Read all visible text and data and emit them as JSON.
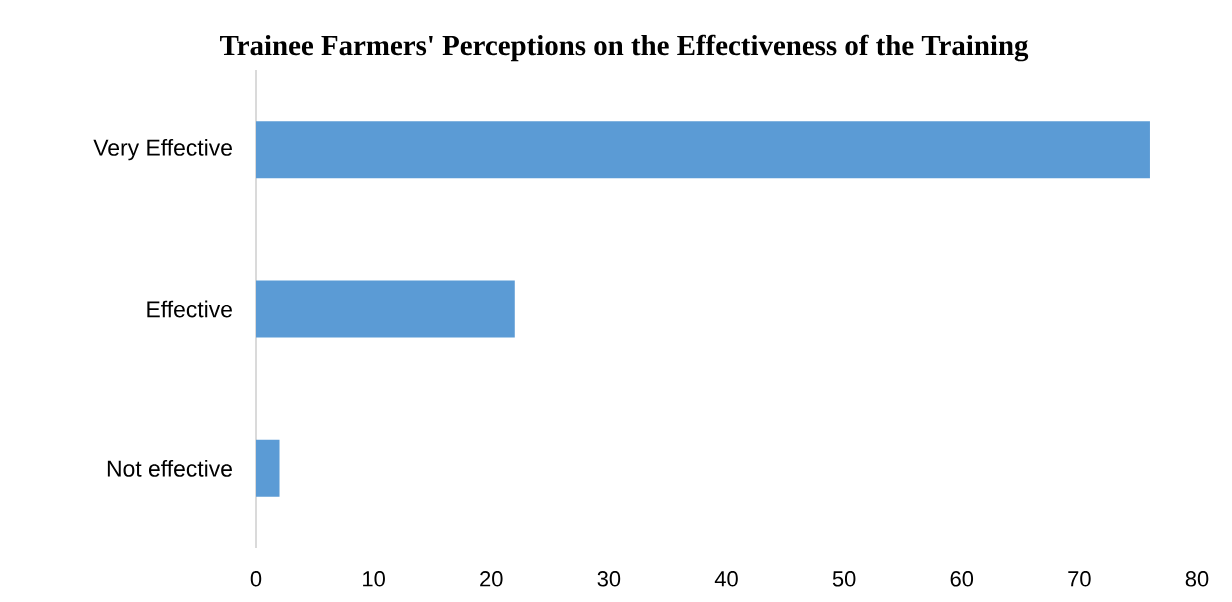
{
  "chart_data": {
    "type": "bar",
    "orientation": "horizontal",
    "title": "Trainee Farmers' Perceptions on the Effectiveness of the Training",
    "categories": [
      "Very Effective",
      "Effective",
      "Not effective"
    ],
    "values": [
      76,
      22,
      2
    ],
    "color": "#5b9bd5",
    "xlim": [
      0,
      80
    ],
    "xticks": [
      0,
      10,
      20,
      30,
      40,
      50,
      60,
      70,
      80
    ],
    "grid": false
  }
}
